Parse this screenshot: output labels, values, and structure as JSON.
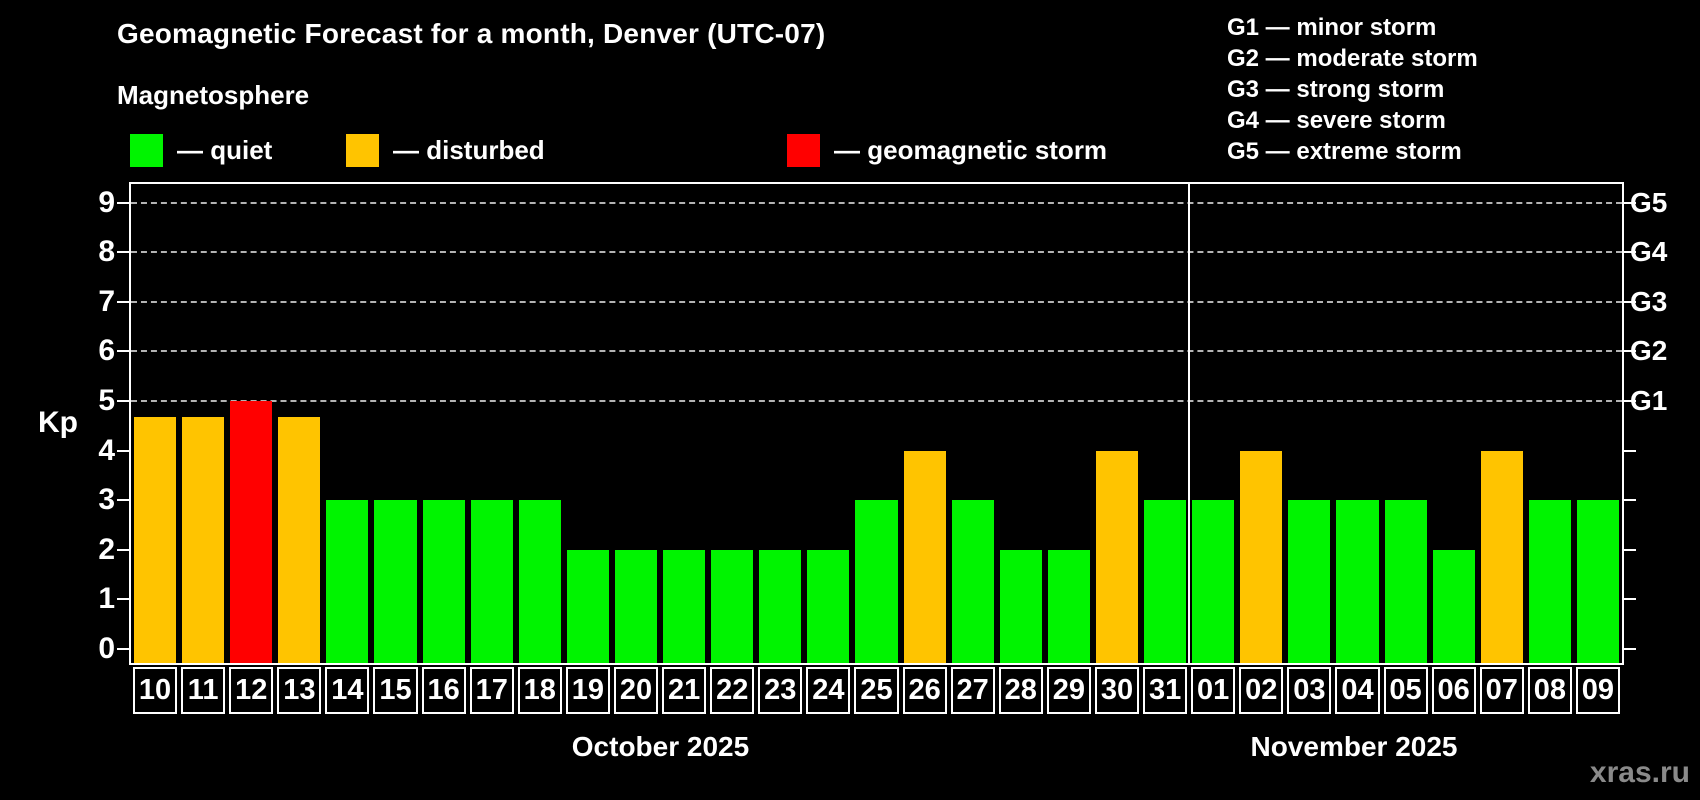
{
  "title": "Geomagnetic Forecast for a month, Denver (UTC-07)",
  "subtitle": "Magnetosphere",
  "legend": {
    "items": [
      {
        "label": "— quiet",
        "condition": "quiet",
        "color": "#00f400"
      },
      {
        "label": "— disturbed",
        "condition": "disturbed",
        "color": "#ffc400"
      },
      {
        "label": "— geomagnetic storm",
        "condition": "storm",
        "color": "#ff0000"
      }
    ]
  },
  "storm_scale": {
    "items": [
      "G1 — minor storm",
      "G2 — moderate storm",
      "G3 — strong storm",
      "G4 — severe storm",
      "G5 — extreme storm"
    ]
  },
  "watermark": "xras.ru",
  "chart_data": {
    "type": "bar",
    "title": "Geomagnetic Forecast for a month, Denver (UTC-07)",
    "ylabel": "Kp",
    "ylim": [
      0,
      9.3
    ],
    "y_ticks": [
      0,
      1,
      2,
      3,
      4,
      5,
      6,
      7,
      8,
      9
    ],
    "gridlines_at_kp": [
      5,
      6,
      7,
      8,
      9
    ],
    "grid_style": "dashed",
    "legend_position": "top",
    "right_axis_labels": [
      {
        "kp": 5,
        "text": "G1"
      },
      {
        "kp": 6,
        "text": "G2"
      },
      {
        "kp": 7,
        "text": "G3"
      },
      {
        "kp": 8,
        "text": "G4"
      },
      {
        "kp": 9,
        "text": "G5"
      }
    ],
    "condition_colors": {
      "quiet": "#00f400",
      "disturbed": "#ffc400",
      "storm": "#ff0000"
    },
    "months": [
      {
        "label": "October 2025"
      },
      {
        "label": "November 2025"
      }
    ],
    "bars": [
      {
        "month": "October 2025",
        "day": "10",
        "kp": 4.67,
        "condition": "disturbed"
      },
      {
        "month": "October 2025",
        "day": "11",
        "kp": 4.67,
        "condition": "disturbed"
      },
      {
        "month": "October 2025",
        "day": "12",
        "kp": 5,
        "condition": "storm"
      },
      {
        "month": "October 2025",
        "day": "13",
        "kp": 4.67,
        "condition": "disturbed"
      },
      {
        "month": "October 2025",
        "day": "14",
        "kp": 3,
        "condition": "quiet"
      },
      {
        "month": "October 2025",
        "day": "15",
        "kp": 3,
        "condition": "quiet"
      },
      {
        "month": "October 2025",
        "day": "16",
        "kp": 3,
        "condition": "quiet"
      },
      {
        "month": "October 2025",
        "day": "17",
        "kp": 3,
        "condition": "quiet"
      },
      {
        "month": "October 2025",
        "day": "18",
        "kp": 3,
        "condition": "quiet"
      },
      {
        "month": "October 2025",
        "day": "19",
        "kp": 2,
        "condition": "quiet"
      },
      {
        "month": "October 2025",
        "day": "20",
        "kp": 2,
        "condition": "quiet"
      },
      {
        "month": "October 2025",
        "day": "21",
        "kp": 2,
        "condition": "quiet"
      },
      {
        "month": "October 2025",
        "day": "22",
        "kp": 2,
        "condition": "quiet"
      },
      {
        "month": "October 2025",
        "day": "23",
        "kp": 2,
        "condition": "quiet"
      },
      {
        "month": "October 2025",
        "day": "24",
        "kp": 2,
        "condition": "quiet"
      },
      {
        "month": "October 2025",
        "day": "25",
        "kp": 3,
        "condition": "quiet"
      },
      {
        "month": "October 2025",
        "day": "26",
        "kp": 4,
        "condition": "disturbed"
      },
      {
        "month": "October 2025",
        "day": "27",
        "kp": 3,
        "condition": "quiet"
      },
      {
        "month": "October 2025",
        "day": "28",
        "kp": 2,
        "condition": "quiet"
      },
      {
        "month": "October 2025",
        "day": "29",
        "kp": 2,
        "condition": "quiet"
      },
      {
        "month": "October 2025",
        "day": "30",
        "kp": 4,
        "condition": "disturbed"
      },
      {
        "month": "October 2025",
        "day": "31",
        "kp": 3,
        "condition": "quiet"
      },
      {
        "month": "November 2025",
        "day": "01",
        "kp": 3,
        "condition": "quiet"
      },
      {
        "month": "November 2025",
        "day": "02",
        "kp": 4,
        "condition": "disturbed"
      },
      {
        "month": "November 2025",
        "day": "03",
        "kp": 3,
        "condition": "quiet"
      },
      {
        "month": "November 2025",
        "day": "04",
        "kp": 3,
        "condition": "quiet"
      },
      {
        "month": "November 2025",
        "day": "05",
        "kp": 3,
        "condition": "quiet"
      },
      {
        "month": "November 2025",
        "day": "06",
        "kp": 2,
        "condition": "quiet"
      },
      {
        "month": "November 2025",
        "day": "07",
        "kp": 4,
        "condition": "disturbed"
      },
      {
        "month": "November 2025",
        "day": "08",
        "kp": 3,
        "condition": "quiet"
      },
      {
        "month": "November 2025",
        "day": "09",
        "kp": 3,
        "condition": "quiet"
      }
    ]
  }
}
